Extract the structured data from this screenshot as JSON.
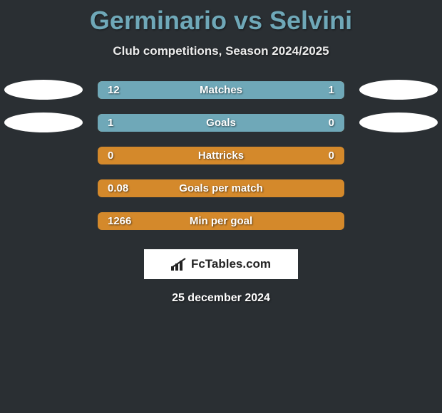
{
  "header": {
    "title": "Germinario vs Selvini",
    "subtitle": "Club competitions, Season 2024/2025"
  },
  "colors": {
    "player_a": "#6fa8b8",
    "player_b": "#d4892b",
    "background": "#2a2f33",
    "avatar_bg": "#ffffff"
  },
  "stats": [
    {
      "label": "Matches",
      "a_value": "12",
      "b_value": "1",
      "a_pct": 76,
      "b_pct": 24,
      "show_avatar": true
    },
    {
      "label": "Goals",
      "a_value": "1",
      "b_value": "0",
      "a_pct": 76,
      "b_pct": 24,
      "show_avatar": true
    },
    {
      "label": "Hattricks",
      "a_value": "0",
      "b_value": "0",
      "a_pct": 0,
      "b_pct": 0,
      "show_avatar": false
    },
    {
      "label": "Goals per match",
      "a_value": "0.08",
      "b_value": "",
      "a_pct": 0,
      "b_pct": 0,
      "show_avatar": false
    },
    {
      "label": "Min per goal",
      "a_value": "1266",
      "b_value": "",
      "a_pct": 0,
      "b_pct": 0,
      "show_avatar": false
    }
  ],
  "footer": {
    "brand": "FcTables.com",
    "date": "25 december 2024"
  }
}
